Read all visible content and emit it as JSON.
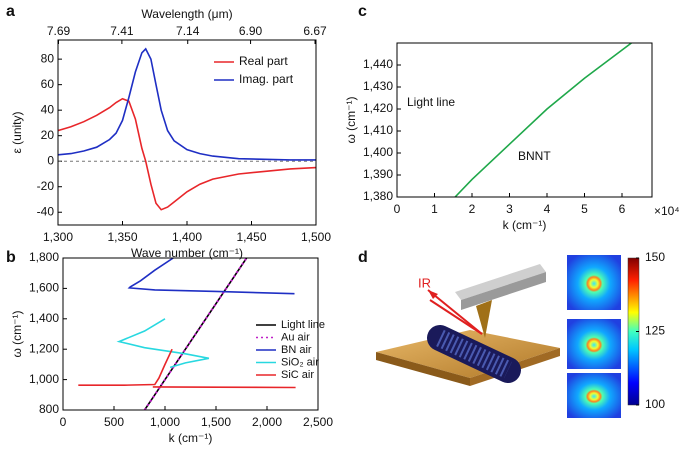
{
  "chart_data": [
    {
      "type": "line",
      "panel": "a",
      "xlabel": "Wave number (cm⁻¹)",
      "ylabel": "ε (unity)",
      "x2label": "Wavelength (μm)",
      "x": [
        1300,
        1310,
        1320,
        1330,
        1340,
        1345,
        1350,
        1355,
        1360,
        1365,
        1368,
        1372,
        1376,
        1380,
        1385,
        1390,
        1400,
        1410,
        1420,
        1440,
        1460,
        1480,
        1500
      ],
      "series": [
        {
          "name": "Real part",
          "color": "#e8262a",
          "values": [
            24,
            27,
            31,
            36,
            42,
            46,
            49,
            47,
            33,
            10,
            0,
            -18,
            -33,
            -38,
            -36,
            -32,
            -24,
            -18,
            -14,
            -10,
            -8,
            -6,
            -5
          ]
        },
        {
          "name": "Imag. part",
          "color": "#1f2fc4",
          "values": [
            5,
            6,
            8,
            11,
            17,
            22,
            32,
            50,
            70,
            85,
            88,
            80,
            60,
            40,
            24,
            16,
            9,
            6,
            4,
            2,
            1.5,
            1,
            1
          ]
        }
      ],
      "xlim": [
        1300,
        1500
      ],
      "xticks": [
        {
          "value": 1300,
          "label": "1,300"
        },
        {
          "value": 1350,
          "label": "1,350"
        },
        {
          "value": 1400,
          "label": "1,400"
        },
        {
          "value": 1450,
          "label": "1,450"
        },
        {
          "value": 1500,
          "label": "1,500"
        }
      ],
      "x2ticks": [
        7.69,
        7.41,
        7.14,
        {
          "value": 6.9,
          "label": "6.90"
        },
        6.67
      ],
      "ylim": [
        -50,
        95
      ],
      "yticks": [
        -40,
        -20,
        0,
        20,
        40,
        60,
        80
      ],
      "reference_line": 0,
      "legend": "upper right"
    },
    {
      "type": "line",
      "panel": "b",
      "xlabel": "k (cm⁻¹)",
      "ylabel": "ω (cm⁻¹)",
      "series": [
        {
          "name": "Light line",
          "color": "#000000",
          "x": [
            800,
            1800
          ],
          "values": [
            800,
            1800
          ]
        },
        {
          "name": "Au air",
          "color": "#c020c8",
          "dash": "dotted",
          "x": [
            800,
            1800
          ],
          "values": [
            800,
            1800
          ]
        },
        {
          "name": "BN air",
          "color": "#1f2fc4",
          "x": [
            1080,
            900,
            760,
            660,
            650,
            900,
            1500,
            2270
          ],
          "values": [
            1800,
            1720,
            1650,
            1610,
            1603,
            1590,
            1580,
            1565
          ]
        },
        {
          "name": "SiO₂ air",
          "color": "#28d8e0",
          "x": [
            1000,
            800,
            550,
            800,
            1200,
            1430,
            1200,
            1050
          ],
          "values": [
            1400,
            1320,
            1250,
            1210,
            1170,
            1140,
            1110,
            1080
          ]
        },
        {
          "name": "SiC air",
          "color": "#e8262a",
          "x": [
            1070,
            1000,
            940,
            900,
            600,
            150,
            null,
            880,
            1500,
            2280
          ],
          "values": [
            1200,
            1100,
            1010,
            968,
            963,
            963,
            null,
            952,
            950,
            948
          ]
        }
      ],
      "xlim": [
        0,
        2500
      ],
      "xticks": [
        0,
        500,
        {
          "value": 1000,
          "label": "1,000"
        },
        {
          "value": 1500,
          "label": "1,500"
        },
        {
          "value": 2000,
          "label": "2,000"
        },
        {
          "value": 2500,
          "label": "2,500"
        }
      ],
      "ylim": [
        800,
        1800
      ],
      "yticks": [
        800,
        {
          "value": 1000,
          "label": "1,000"
        },
        {
          "value": 1200,
          "label": "1,200"
        },
        {
          "value": 1400,
          "label": "1,400"
        },
        {
          "value": 1600,
          "label": "1,600"
        },
        {
          "value": 1800,
          "label": "1,800"
        }
      ],
      "legend": "lower right"
    },
    {
      "type": "line",
      "panel": "c",
      "xlabel": "k (cm⁻¹)",
      "ylabel": "ω (cm⁻¹)",
      "x_multiplier": "×10⁴",
      "series": [
        {
          "color": "#1fa84a",
          "x": [
            15500,
            20000,
            30000,
            40000,
            50000,
            62500
          ],
          "values": [
            1380,
            1388,
            1404,
            1420,
            1434,
            1450
          ]
        }
      ],
      "annotations": [
        "Light line",
        "BNNT"
      ],
      "xlim": [
        0,
        68000
      ],
      "xticks": [
        {
          "value": 0,
          "label": "0"
        },
        {
          "value": 10000,
          "label": "1"
        },
        {
          "value": 20000,
          "label": "2"
        },
        {
          "value": 30000,
          "label": "3"
        },
        {
          "value": 40000,
          "label": "4"
        },
        {
          "value": 50000,
          "label": "5"
        },
        {
          "value": 60000,
          "label": "6"
        }
      ],
      "ylim": [
        1380,
        1450
      ],
      "yticks": [
        {
          "value": 1380,
          "label": "1,380"
        },
        {
          "value": 1390,
          "label": "1,390"
        },
        {
          "value": 1400,
          "label": "1,400"
        },
        {
          "value": 1410,
          "label": "1,410"
        },
        {
          "value": 1420,
          "label": "1,420"
        },
        {
          "value": 1430,
          "label": "1,430"
        },
        {
          "value": 1440,
          "label": "1,440"
        }
      ]
    }
  ],
  "figure_d": {
    "panel": "d",
    "annotation": "IR",
    "colorbar": {
      "lim": [
        100,
        150
      ],
      "ticks": [
        100,
        125,
        150
      ]
    }
  }
}
